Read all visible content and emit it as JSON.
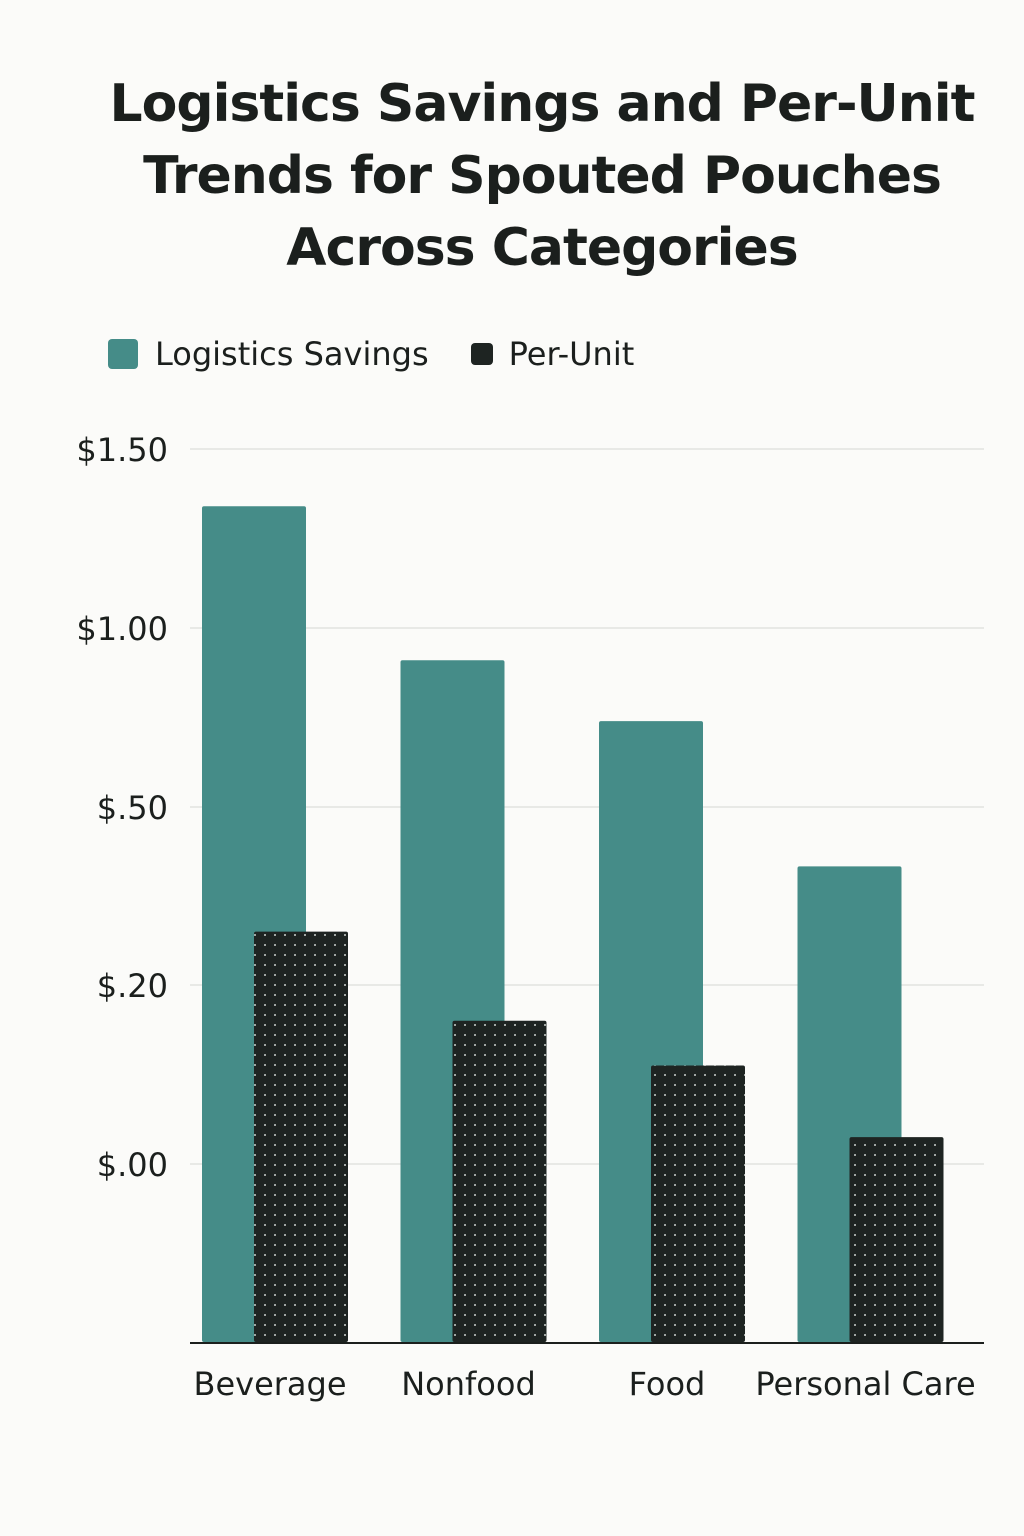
{
  "chart_data": {
    "type": "bar",
    "title": "Logistics Savings and Per-Unit Trends for Spouted Pouches Across Categories",
    "title_lines": [
      "Logistics Savings and Per-Unit",
      "Trends for Spouted Pouches",
      "Across Categories"
    ],
    "categories": [
      "Beverage",
      "Nonfood",
      "Food",
      "Personal Care"
    ],
    "series": [
      {
        "name": "Logistics Savings",
        "values": [
          1.34,
          0.91,
          0.74,
          0.4
        ],
        "color": "#458c88",
        "pattern": "solid"
      },
      {
        "name": "Per-Unit",
        "values": [
          0.29,
          0.16,
          0.11,
          0.03
        ],
        "color": "#1e2422",
        "pattern": "dotted"
      }
    ],
    "yticks": [
      {
        "value": 0.0,
        "label": "$.00"
      },
      {
        "value": 0.2,
        "label": "$.20"
      },
      {
        "value": 0.5,
        "label": "$.50"
      },
      {
        "value": 1.0,
        "label": "$1.00"
      },
      {
        "value": 1.5,
        "label": "$1.50"
      }
    ],
    "xlabel": "",
    "ylabel": "",
    "ylim": [
      -0.5,
      1.5
    ],
    "grid": true,
    "legend_position": "top-left"
  }
}
